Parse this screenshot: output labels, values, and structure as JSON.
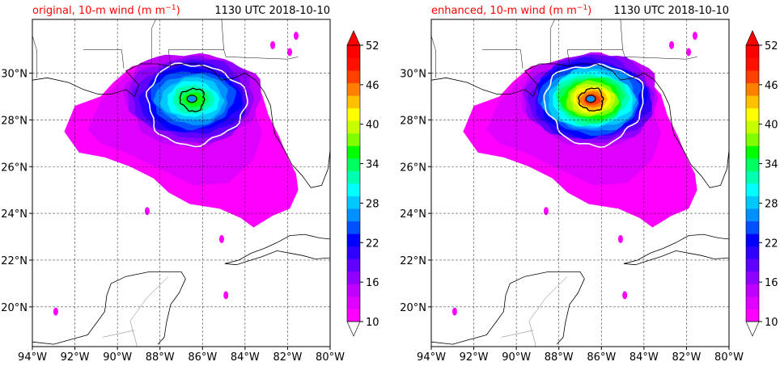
{
  "chart_data": [
    {
      "type": "heatmap",
      "title_left_prefix": "original, 10-m wind (m m",
      "title_left_sup": "−1",
      "title_left_suffix": ")",
      "title_right": "1130 UTC 2018-10-10",
      "xlim": [
        -94,
        -80
      ],
      "ylim": [
        18.3,
        32.3
      ],
      "x_tick_labels": [
        "94°W",
        "92°W",
        "90°W",
        "88°W",
        "86°W",
        "84°W",
        "82°W",
        "80°W"
      ],
      "x_tick_values": [
        -94,
        -92,
        -90,
        -88,
        -86,
        -84,
        -82,
        -80
      ],
      "y_tick_labels": [
        "20°N",
        "22°N",
        "24°N",
        "26°N",
        "28°N",
        "30°N"
      ],
      "y_tick_values": [
        20,
        22,
        24,
        26,
        28,
        30
      ],
      "grid": true,
      "storm_center": {
        "lon": -86.5,
        "lat": 28.9
      },
      "colorbar": {
        "min": 10,
        "max": 52,
        "step": 3,
        "extend": "both",
        "tick_values": [
          10,
          16,
          22,
          28,
          34,
          40,
          46,
          52
        ],
        "tick_labels": [
          "10",
          "16",
          "22",
          "28",
          "34",
          "40",
          "46",
          "52"
        ],
        "colors": [
          "#ff00ff",
          "#e000ff",
          "#c000ff",
          "#9000ff",
          "#6000ff",
          "#3000ff",
          "#0000ff",
          "#0050ff",
          "#0090ff",
          "#00c8ff",
          "#00ffff",
          "#00ffb0",
          "#00ff60",
          "#00ff00",
          "#80ff00",
          "#c8ff00",
          "#ffff00",
          "#ffc000",
          "#ff8000",
          "#ff4000",
          "#ff1000",
          "#ff0000"
        ],
        "under_color": "#ffffff",
        "over_color": "#ff0000"
      },
      "max_wind_class": 13
    },
    {
      "type": "heatmap",
      "title_left_prefix": "enhanced, 10-m wind (m m",
      "title_left_sup": "−1",
      "title_left_suffix": ")",
      "title_right": "1130 UTC 2018-10-10",
      "xlim": [
        -94,
        -80
      ],
      "ylim": [
        18.3,
        32.3
      ],
      "x_tick_labels": [
        "94°W",
        "92°W",
        "90°W",
        "88°W",
        "86°W",
        "84°W",
        "82°W",
        "80°W"
      ],
      "x_tick_values": [
        -94,
        -92,
        -90,
        -88,
        -86,
        -84,
        -82,
        -80
      ],
      "y_tick_labels": [
        "20°N",
        "22°N",
        "24°N",
        "26°N",
        "28°N",
        "30°N"
      ],
      "y_tick_values": [
        20,
        22,
        24,
        26,
        28,
        30
      ],
      "grid": true,
      "storm_center": {
        "lon": -86.5,
        "lat": 28.9
      },
      "colorbar": {
        "min": 10,
        "max": 52,
        "step": 3,
        "extend": "both",
        "tick_values": [
          10,
          16,
          22,
          28,
          34,
          40,
          46,
          52
        ],
        "tick_labels": [
          "10",
          "16",
          "22",
          "28",
          "34",
          "40",
          "46",
          "52"
        ],
        "colors": [
          "#ff00ff",
          "#e000ff",
          "#c000ff",
          "#9000ff",
          "#6000ff",
          "#3000ff",
          "#0000ff",
          "#0050ff",
          "#0090ff",
          "#00c8ff",
          "#00ffff",
          "#00ffb0",
          "#00ff60",
          "#00ff00",
          "#80ff00",
          "#c8ff00",
          "#ffff00",
          "#ffc000",
          "#ff8000",
          "#ff4000",
          "#ff1000",
          "#ff0000"
        ],
        "under_color": "#ffffff",
        "over_color": "#ff0000"
      },
      "max_wind_class": 19
    }
  ]
}
